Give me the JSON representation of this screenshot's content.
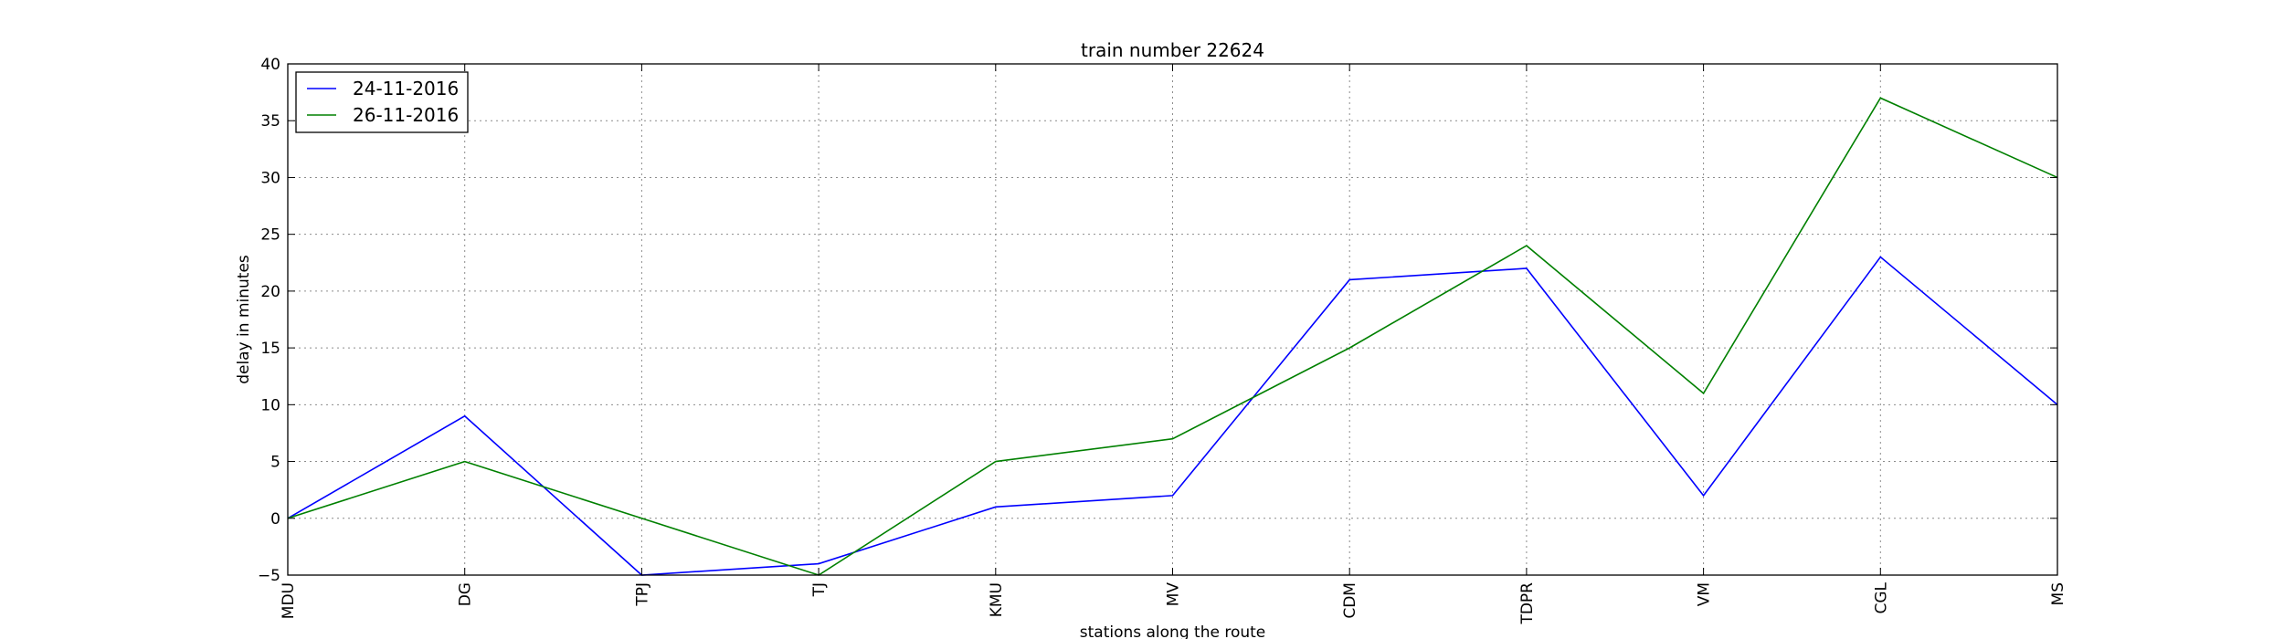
{
  "chart_data": {
    "type": "line",
    "title": "train number 22624",
    "xlabel": "stations along the route",
    "ylabel": "delay in minutes",
    "categories": [
      "MDU",
      "DG",
      "TPJ",
      "TJ",
      "KMU",
      "MV",
      "CDM",
      "TDPR",
      "VM",
      "CGL",
      "MS"
    ],
    "ylim": [
      -5,
      40
    ],
    "yticks": [
      -5,
      0,
      5,
      10,
      15,
      20,
      25,
      30,
      35,
      40
    ],
    "grid": true,
    "legend_position": "top-left",
    "series": [
      {
        "name": "24-11-2016",
        "color": "#0000ff",
        "values": [
          0,
          9,
          -5,
          -4,
          1,
          2,
          21,
          22,
          2,
          23,
          10
        ]
      },
      {
        "name": "26-11-2016",
        "color": "#008000",
        "values": [
          0,
          5,
          0,
          -5,
          5,
          7,
          15,
          24,
          11,
          37,
          30
        ]
      }
    ]
  }
}
